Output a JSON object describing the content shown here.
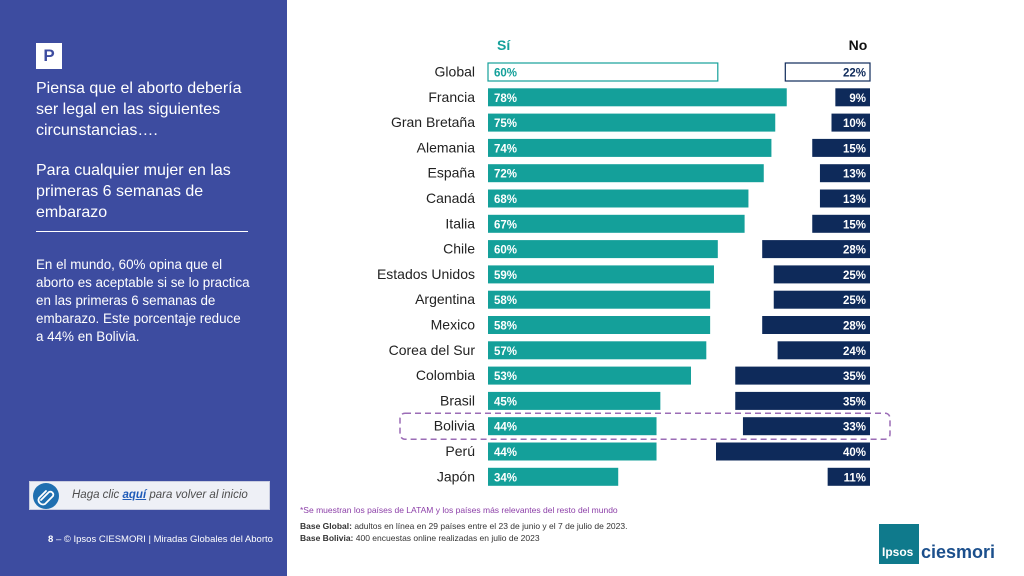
{
  "sidebar": {
    "badge": "P",
    "question": "Piensa que el aborto debería ser legal en las siguientes circunstancias….",
    "subquestion": "Para cualquier mujer en las primeras 6 semanas de embarazo",
    "insight": "En el mundo, 60% opina que el aborto es aceptable si se lo practica en las primeras 6 semanas de embarazo. Este porcentaje reduce a 44% en Bolivia.",
    "back_link": {
      "prefix": "Haga clic ",
      "link_text": "aquí",
      "suffix": " para volver al inicio",
      "icon": "paperclip-icon"
    },
    "footer": {
      "page_number": "8",
      "separator": "–",
      "text": "© Ipsos CIESMORI | Miradas Globales del Aborto"
    }
  },
  "chart_data": {
    "type": "bar",
    "orientation": "horizontal",
    "categories": [
      "Global",
      "Francia",
      "Gran Bretaña",
      "Alemania",
      "España",
      "Canadá",
      "Italia",
      "Chile",
      "Estados Unidos",
      "Argentina",
      "Mexico",
      "Corea del Sur",
      "Colombia",
      "Brasil",
      "Bolivia",
      "Perú",
      "Japón"
    ],
    "series": [
      {
        "name": "Sí",
        "color": "#14a09a",
        "values": [
          60,
          78,
          75,
          74,
          72,
          68,
          67,
          60,
          59,
          58,
          58,
          57,
          53,
          45,
          44,
          44,
          34
        ],
        "labels": [
          "60%",
          "78%",
          "75%",
          "74%",
          "72%",
          "68%",
          "67%",
          "60%",
          "59%",
          "58%",
          "58%",
          "57%",
          "53%",
          "45%",
          "44%",
          "44%",
          "34%"
        ]
      },
      {
        "name": "No",
        "color": "#0e2a5a",
        "values": [
          22,
          9,
          10,
          15,
          13,
          13,
          15,
          28,
          25,
          25,
          28,
          24,
          35,
          35,
          33,
          40,
          11
        ],
        "labels": [
          "22%",
          "9%",
          "10%",
          "15%",
          "13%",
          "13%",
          "15%",
          "28%",
          "25%",
          "25%",
          "28%",
          "24%",
          "35%",
          "35%",
          "33%",
          "40%",
          "11%"
        ]
      }
    ],
    "highlight_outline": "Global",
    "highlight_dashed": "Bolivia",
    "dashed_color": "#9b6cb6"
  },
  "notes": {
    "note": "*Se muestran los países de LATAM y los países más relevantes del resto del mundo",
    "base_global_label": "Base Global:",
    "base_global_text": " adultos en línea en 29 países entre el 23 de junio y el 7 de julio de 2023.",
    "base_bolivia_label": "Base Bolivia:",
    "base_bolivia_text": " 400 encuestas online realizadas en julio de 2023"
  },
  "logo": {
    "box_text": "Ipsos",
    "text": "ciesmori"
  },
  "colors": {
    "sidebar": "#3d4ca0",
    "si": "#14a09a",
    "no": "#0e2a5a"
  }
}
